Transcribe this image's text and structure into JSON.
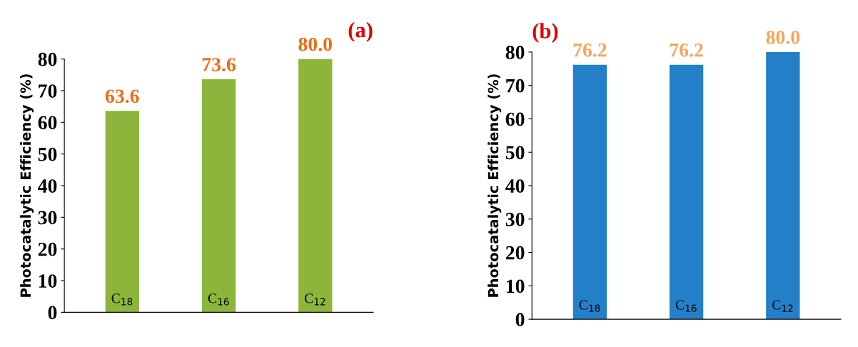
{
  "chart_data": [
    {
      "type": "bar",
      "title": "(a)",
      "ylabel": "Photocatalytic Efficiency (%)",
      "categories": [
        "C$_{18}$",
        "C$_{16}$",
        "C$_{12}$"
      ],
      "values": [
        63.6,
        73.6,
        80.0
      ],
      "value_labels": [
        "63.6",
        "73.6",
        "80.0"
      ],
      "color": "#8db53c",
      "ylim": [
        0,
        80
      ],
      "yticks": [
        0,
        10,
        20,
        30,
        40,
        50,
        60,
        70,
        80
      ],
      "grid": false,
      "legend": false
    },
    {
      "type": "bar",
      "title": "(b)",
      "ylabel": "Photocatalytic Efficiency (%)",
      "categories": [
        "C$_{18}$",
        "C$_{16}$",
        "C$_{12}$"
      ],
      "values": [
        76.2,
        76.2,
        80.0
      ],
      "value_labels": [
        "76.2",
        "76.2",
        "80.0"
      ],
      "color": "#2380c8",
      "ylim": [
        0,
        80
      ],
      "yticks": [
        0,
        10,
        20,
        30,
        40,
        50,
        60,
        70,
        80
      ],
      "grid": false,
      "legend": false
    }
  ]
}
